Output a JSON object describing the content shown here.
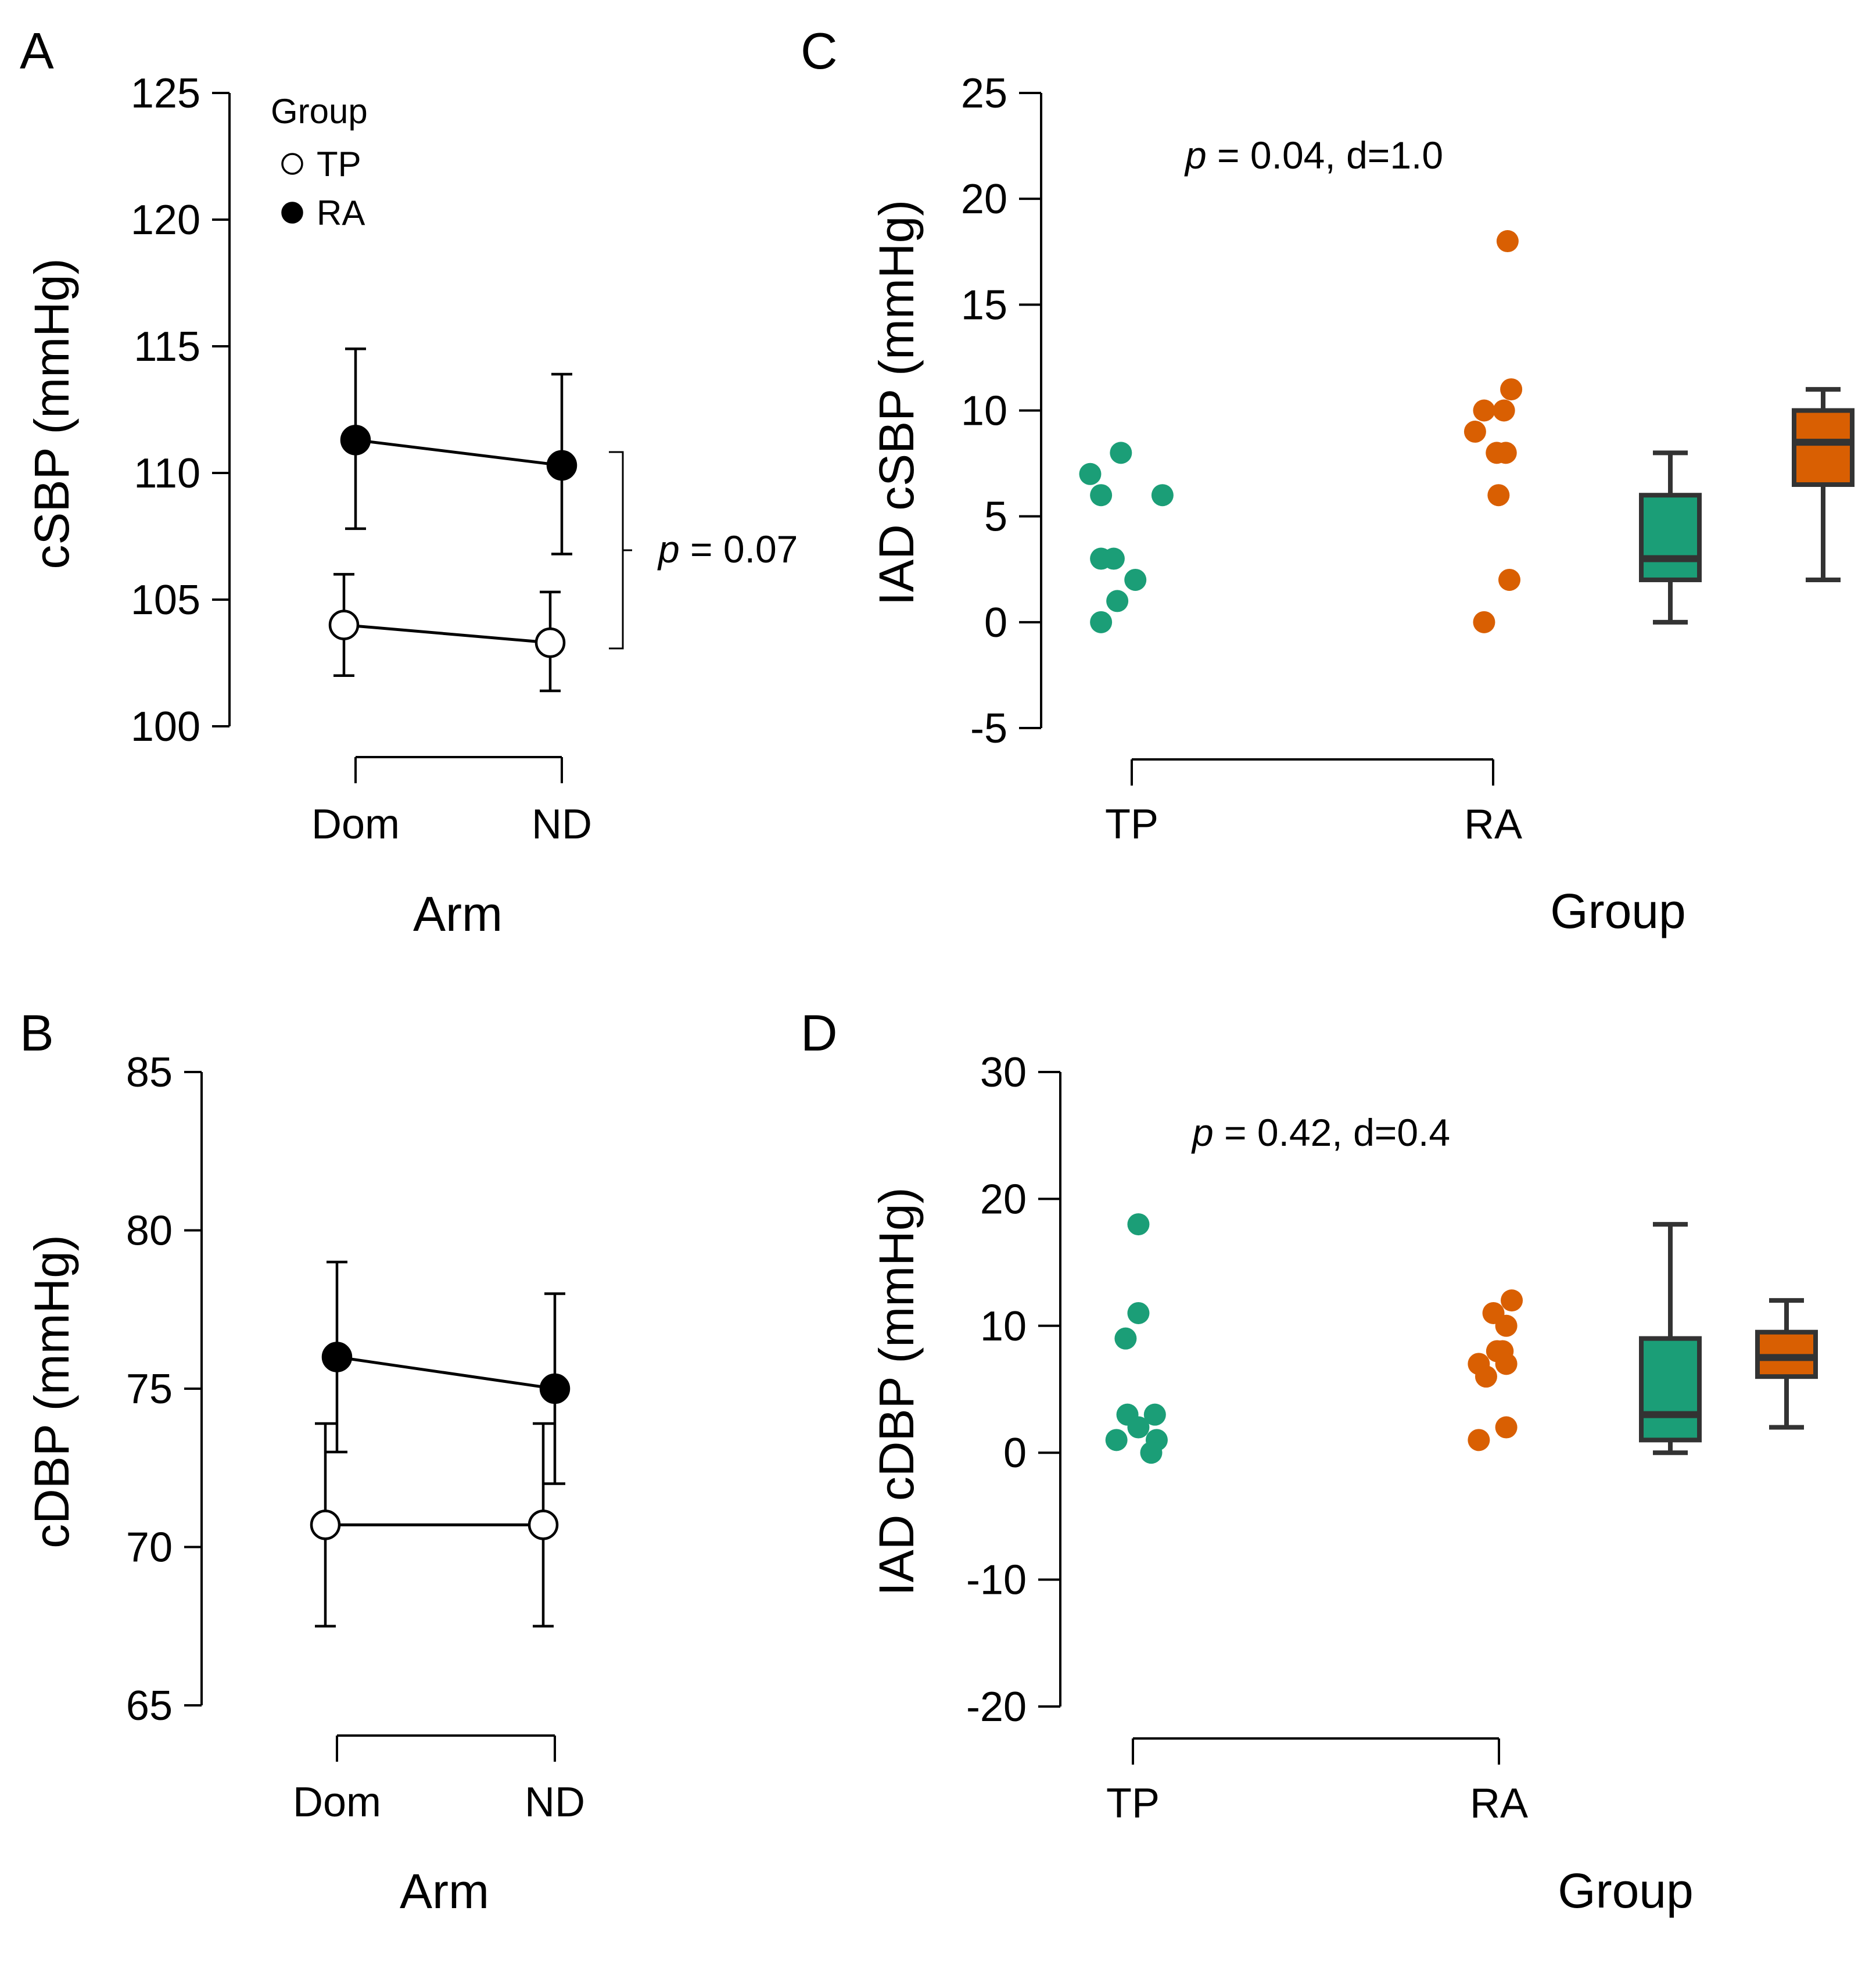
{
  "colors": {
    "tp": "#1b9e77",
    "ra": "#d95f02",
    "ink": "#000000",
    "box_stroke": "#333333"
  },
  "chart_data": [
    {
      "panel": "A",
      "type": "line",
      "xlabel": "Arm",
      "ylabel": "cSBP (mmHg)",
      "categories": [
        "Dom",
        "ND"
      ],
      "ylim": [
        100,
        125
      ],
      "yticks": [
        100,
        105,
        110,
        115,
        120,
        125
      ],
      "legend": {
        "title": "Group",
        "position": "top-left"
      },
      "series": [
        {
          "name": "TP",
          "values": [
            104.0,
            103.3
          ],
          "err_low": [
            102.0,
            101.4
          ],
          "err_high": [
            106.0,
            105.3
          ],
          "marker": "open"
        },
        {
          "name": "RA",
          "values": [
            111.3,
            110.3
          ],
          "err_low": [
            107.8,
            106.8
          ],
          "err_high": [
            114.9,
            113.9
          ],
          "marker": "filled"
        }
      ],
      "annotation": {
        "italic": "p",
        "text": " = 0.07"
      }
    },
    {
      "panel": "B",
      "type": "line",
      "xlabel": "Arm",
      "ylabel": "cDBP (mmHg)",
      "categories": [
        "Dom",
        "ND"
      ],
      "ylim": [
        65,
        85
      ],
      "yticks": [
        65,
        70,
        75,
        80,
        85
      ],
      "series": [
        {
          "name": "TP",
          "values": [
            70.7,
            70.7
          ],
          "err_low": [
            67.5,
            67.5
          ],
          "err_high": [
            73.9,
            73.9
          ],
          "marker": "open"
        },
        {
          "name": "RA",
          "values": [
            76.0,
            75.0
          ],
          "err_low": [
            73.0,
            72.0
          ],
          "err_high": [
            79.0,
            78.0
          ],
          "marker": "filled"
        }
      ]
    },
    {
      "panel": "C",
      "type": "scatter",
      "xlabel": "Group",
      "ylabel": "IAD cSBP (mmHg)",
      "categories": [
        "TP",
        "RA"
      ],
      "ylim": [
        -5,
        25
      ],
      "yticks": [
        -5,
        0,
        5,
        10,
        15,
        20,
        25
      ],
      "annotation": {
        "italic": "p",
        "text": " = 0.04, d=1.0"
      },
      "series": [
        {
          "name": "TP",
          "values": [
            8,
            7,
            6,
            6,
            3,
            3,
            2,
            1,
            0
          ],
          "jitter": [
            -0.06,
            -0.23,
            -0.17,
            0.17,
            -0.17,
            -0.1,
            0.02,
            -0.08,
            -0.17
          ]
        },
        {
          "name": "RA",
          "values": [
            18,
            11,
            10,
            10,
            9,
            8,
            8,
            6,
            2,
            0
          ],
          "jitter": [
            0.08,
            0.1,
            -0.05,
            0.06,
            -0.1,
            0.02,
            0.07,
            0.03,
            0.09,
            -0.05
          ]
        }
      ],
      "boxes": [
        {
          "name": "TP",
          "min": 0,
          "q1": 2,
          "median": 3,
          "q3": 6,
          "max": 8
        },
        {
          "name": "RA",
          "min": 2,
          "q1": 6.5,
          "median": 8.5,
          "q3": 10,
          "max": 11
        }
      ]
    },
    {
      "panel": "D",
      "type": "scatter",
      "xlabel": "Group",
      "ylabel": "IAD cDBP (mmHg)",
      "categories": [
        "TP",
        "RA"
      ],
      "ylim": [
        -20,
        30
      ],
      "yticks": [
        -20,
        -10,
        0,
        10,
        20,
        30
      ],
      "annotation": {
        "italic": "p",
        "text": " = 0.42, d=0.4"
      },
      "series": [
        {
          "name": "TP",
          "values": [
            18,
            11,
            9,
            3,
            3,
            2,
            1,
            1,
            0
          ],
          "jitter": [
            0.03,
            0.03,
            -0.04,
            -0.03,
            0.12,
            0.03,
            -0.09,
            0.13,
            0.1
          ]
        },
        {
          "name": "RA",
          "values": [
            12,
            11,
            10,
            8,
            8,
            7,
            7,
            6,
            2,
            1
          ],
          "jitter": [
            0.07,
            -0.03,
            0.04,
            -0.01,
            0.02,
            -0.11,
            0.04,
            -0.07,
            0.04,
            -0.11
          ]
        }
      ],
      "boxes": [
        {
          "name": "TP",
          "min": 0,
          "q1": 1,
          "median": 3,
          "q3": 9,
          "max": 18
        },
        {
          "name": "RA",
          "min": 2,
          "q1": 6,
          "median": 7.5,
          "q3": 9.5,
          "max": 12
        }
      ]
    }
  ]
}
